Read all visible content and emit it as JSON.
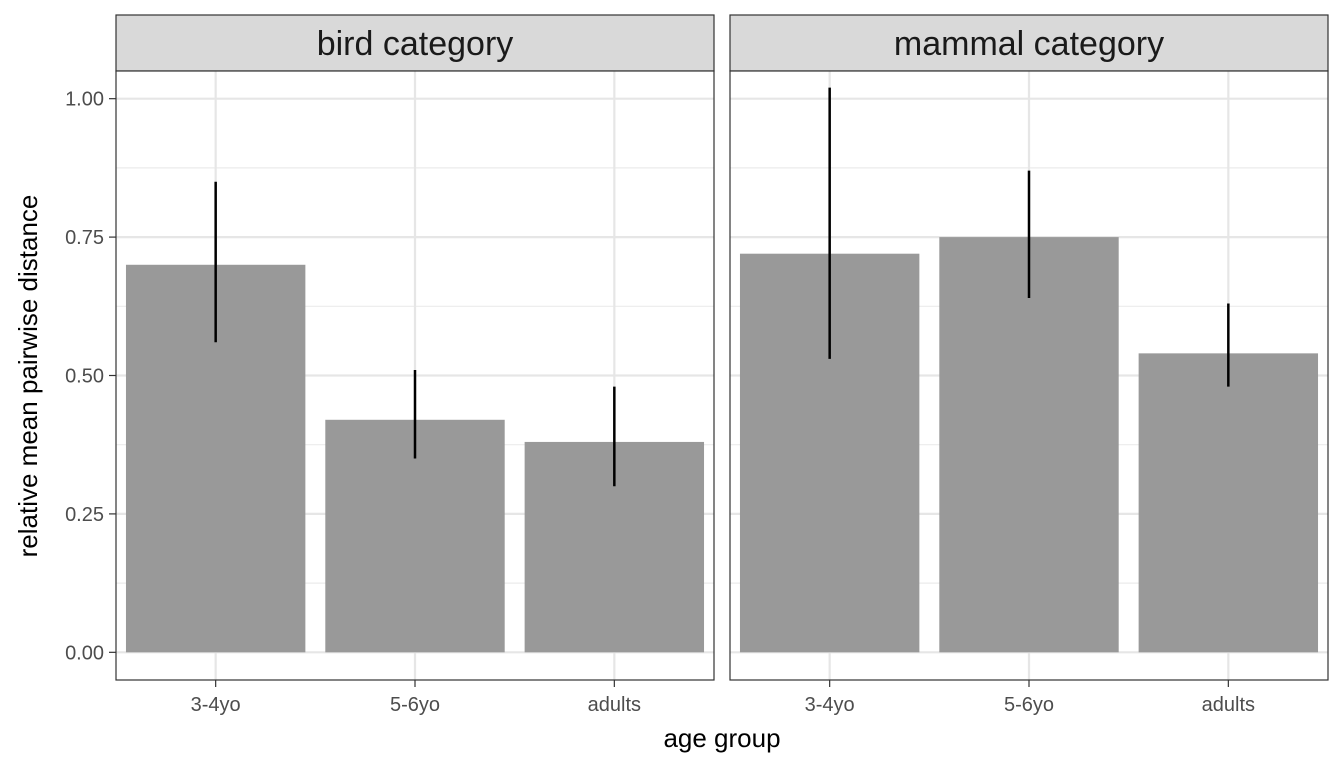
{
  "chart_data": {
    "type": "bar",
    "xlabel": "age group",
    "ylabel": "relative mean pairwise distance",
    "ylim": [
      -0.05,
      1.05
    ],
    "y_ticks": [
      "0.00",
      "0.25",
      "0.50",
      "0.75",
      "1.00"
    ],
    "categories": [
      "3-4yo",
      "5-6yo",
      "adults"
    ],
    "grid": true,
    "bar_color": "#999999",
    "errorbar_color": "#000000",
    "panels": [
      {
        "title": "bird category",
        "values": [
          0.7,
          0.42,
          0.38
        ],
        "error_low": [
          0.56,
          0.35,
          0.3
        ],
        "error_high": [
          0.85,
          0.51,
          0.48
        ]
      },
      {
        "title": "mammal category",
        "values": [
          0.72,
          0.75,
          0.54
        ],
        "error_low": [
          0.53,
          0.64,
          0.48
        ],
        "error_high": [
          1.02,
          0.87,
          0.63
        ]
      }
    ]
  }
}
